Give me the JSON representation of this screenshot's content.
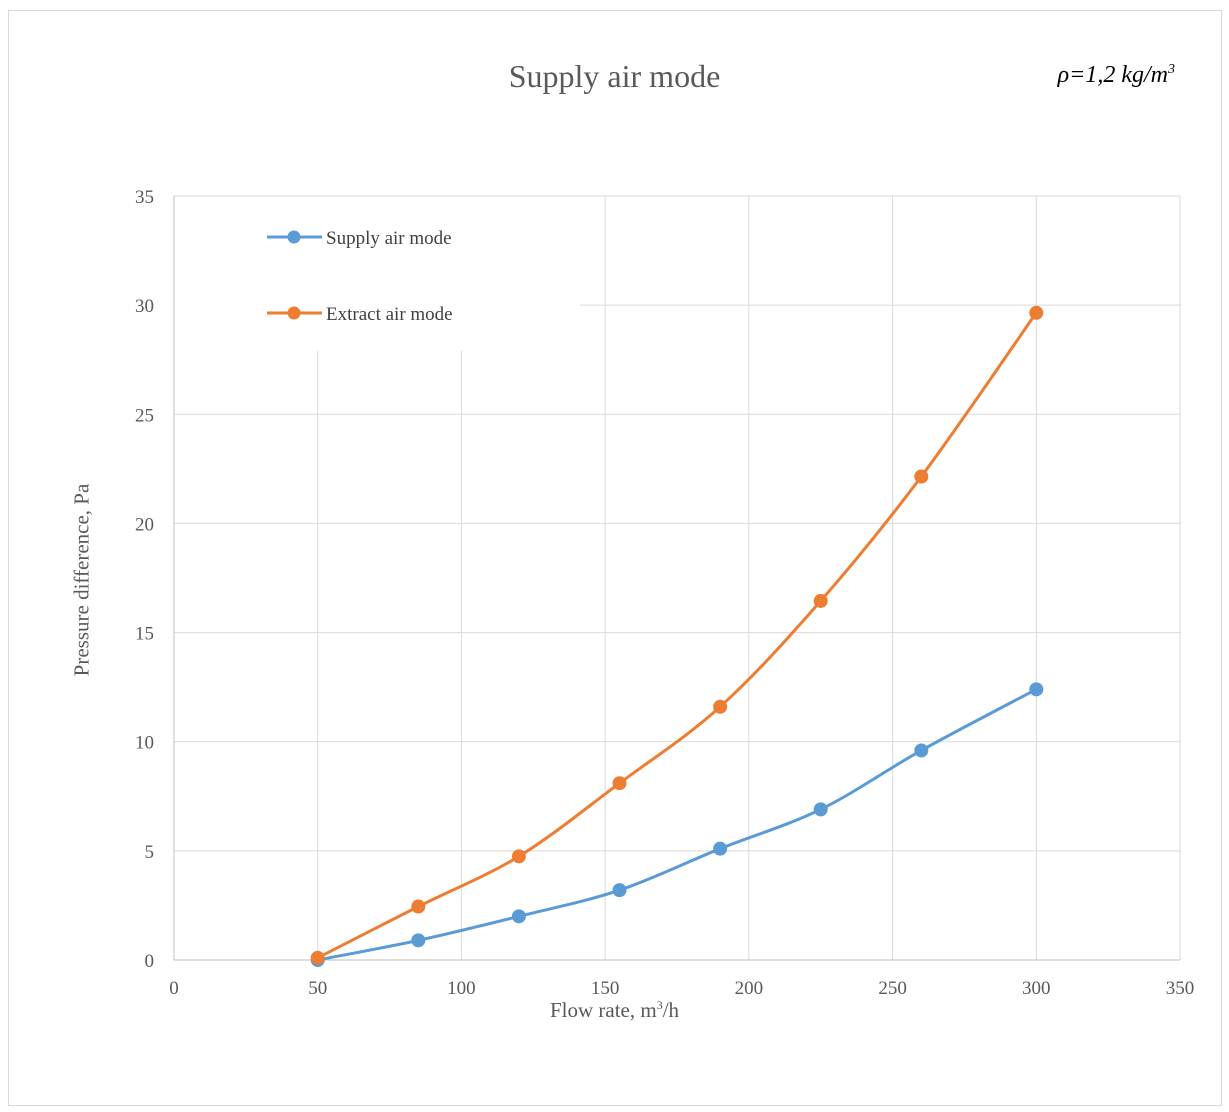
{
  "chart_data": {
    "type": "line",
    "title": "Supply air mode",
    "annotation": {
      "text": "ρ=1,2 kg/m",
      "superscript": "3",
      "placement": "top-right"
    },
    "xlabel": {
      "text": "Flow rate, m",
      "superscript": "3",
      "suffix": "/h"
    },
    "ylabel": "Pressure difference, Pa",
    "xlim": [
      0,
      350
    ],
    "ylim": [
      0,
      35
    ],
    "x_ticks": [
      0,
      50,
      100,
      150,
      200,
      250,
      300,
      350
    ],
    "y_ticks": [
      0,
      5,
      10,
      15,
      20,
      25,
      30,
      35
    ],
    "grid": true,
    "legend_position": "top-left",
    "series": [
      {
        "name": "Supply air mode",
        "color": "#5b9bd5",
        "x": [
          50,
          85,
          120,
          155,
          190,
          225,
          260,
          300
        ],
        "y": [
          0.0,
          0.9,
          2.0,
          3.2,
          5.1,
          6.9,
          9.6,
          12.4
        ]
      },
      {
        "name": "Extract air mode",
        "color": "#ed7d31",
        "x": [
          50,
          85,
          120,
          155,
          190,
          225,
          260,
          300
        ],
        "y": [
          0.1,
          2.45,
          4.75,
          8.1,
          11.6,
          16.45,
          22.15,
          29.65
        ]
      }
    ]
  }
}
